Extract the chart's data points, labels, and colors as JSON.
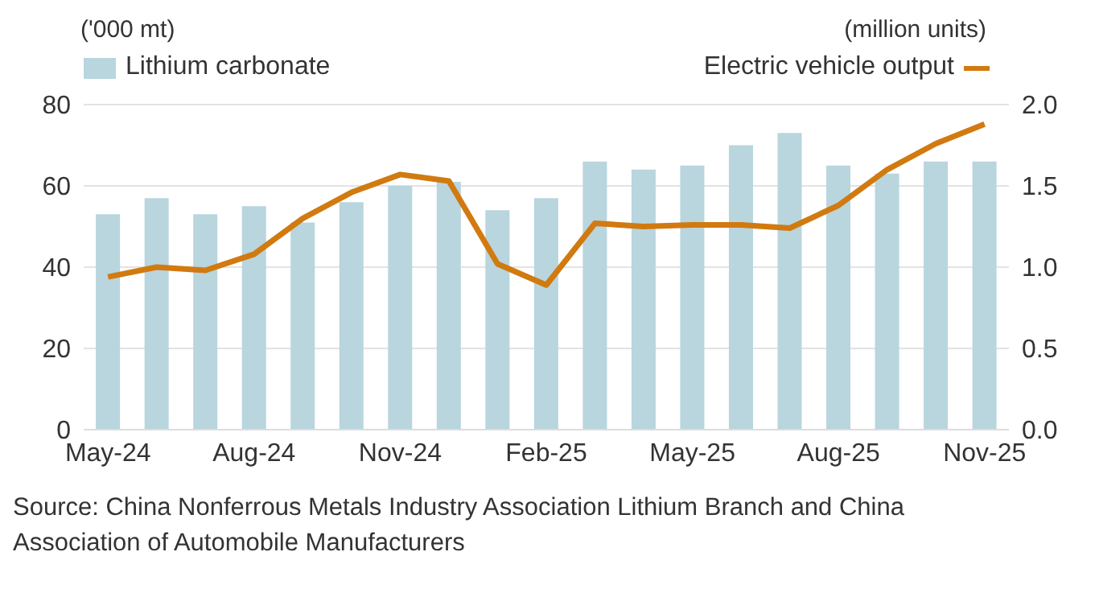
{
  "chart_data": {
    "type": "bar",
    "ylabel": "('000 mt)",
    "y2label": "(million units)",
    "categories": [
      "May-24",
      null,
      null,
      "Aug-24",
      null,
      null,
      "Nov-24",
      null,
      null,
      "Feb-25",
      null,
      null,
      "May-25",
      null,
      null,
      "Aug-25",
      null,
      null,
      "Nov-25"
    ],
    "series": [
      {
        "name": "Lithium carbonate",
        "color": "#b9d5de",
        "values": [
          53,
          57,
          53,
          55,
          51,
          56,
          60,
          61,
          54,
          57,
          66,
          64,
          65,
          70,
          73,
          65,
          63,
          66,
          66
        ]
      },
      {
        "name": "Electric vehicle output",
        "type": "line",
        "axis": "y2",
        "color": "#d17a10",
        "values": [
          0.94,
          1.0,
          0.98,
          1.08,
          1.3,
          1.46,
          1.57,
          1.53,
          1.02,
          0.89,
          1.27,
          1.25,
          1.26,
          1.26,
          1.24,
          1.38,
          1.6,
          1.76,
          1.88
        ]
      }
    ],
    "ylim": [
      0,
      80
    ],
    "yticks": [
      0,
      20,
      40,
      60,
      80
    ],
    "y2lim": [
      0,
      2
    ],
    "y2ticks": [
      {
        "value": 0,
        "label": "0.0"
      },
      {
        "value": 0.5,
        "label": "0.5"
      },
      {
        "value": 1,
        "label": "1.0"
      },
      {
        "value": 1.5,
        "label": "1.5"
      },
      {
        "value": 2,
        "label": "2.0"
      }
    ],
    "grid": "y",
    "legend": "top",
    "marker": "none",
    "line_style": "solid",
    "annotations": [
      "Source: China Nonferrous Metals Industry Association Lithium Branch and China Association of Automobile Manufacturers"
    ]
  }
}
